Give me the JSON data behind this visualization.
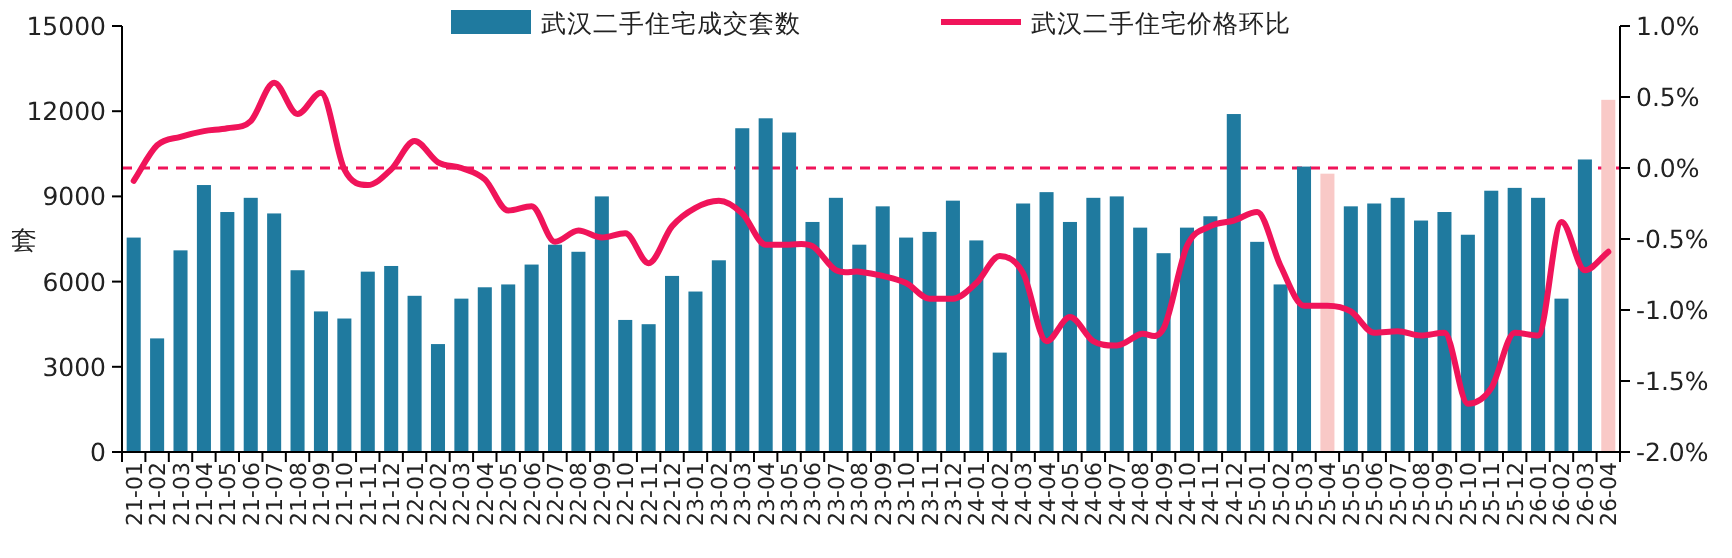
{
  "chart_data": {
    "type": "bar",
    "ylabel": "套",
    "legend": "top",
    "categories": [
      "21-01",
      "21-02",
      "21-03",
      "21-04",
      "21-05",
      "21-06",
      "21-07",
      "21-08",
      "21-09",
      "21-10",
      "21-11",
      "21-12",
      "22-01",
      "22-02",
      "22-03",
      "22-04",
      "22-05",
      "22-06",
      "22-07",
      "22-08",
      "22-09",
      "22-10",
      "22-11",
      "22-12",
      "23-01",
      "23-02",
      "23-03",
      "23-04",
      "23-05",
      "23-06",
      "23-07",
      "23-08",
      "23-09",
      "23-10",
      "23-11",
      "23-12",
      "24-01",
      "24-02",
      "24-03",
      "24-04",
      "24-05",
      "24-06",
      "24-07",
      "24-08",
      "24-09",
      "24-10",
      "24-11",
      "24-12",
      "25-01",
      "25-02",
      "25-03",
      "25-04",
      "25-05",
      "25-06",
      "25-07",
      "25-08",
      "25-09",
      "25-10",
      "25-11",
      "25-12",
      "26-01",
      "26-02",
      "26-03",
      "26-04"
    ],
    "series": [
      {
        "name": "武汉二手住宅成交套数",
        "color": "#1f7a9f",
        "colors": [
          "#1f7a9f",
          "#1f7a9f",
          "#1f7a9f",
          "#1f7a9f",
          "#1f7a9f",
          "#1f7a9f",
          "#1f7a9f",
          "#1f7a9f",
          "#1f7a9f",
          "#1f7a9f",
          "#1f7a9f",
          "#1f7a9f",
          "#1f7a9f",
          "#1f7a9f",
          "#1f7a9f",
          "#1f7a9f",
          "#1f7a9f",
          "#1f7a9f",
          "#1f7a9f",
          "#1f7a9f",
          "#1f7a9f",
          "#1f7a9f",
          "#1f7a9f",
          "#1f7a9f",
          "#1f7a9f",
          "#1f7a9f",
          "#1f7a9f",
          "#1f7a9f",
          "#1f7a9f",
          "#1f7a9f",
          "#1f7a9f",
          "#1f7a9f",
          "#1f7a9f",
          "#1f7a9f",
          "#1f7a9f",
          "#1f7a9f",
          "#1f7a9f",
          "#1f7a9f",
          "#1f7a9f",
          "#1f7a9f",
          "#1f7a9f",
          "#1f7a9f",
          "#1f7a9f",
          "#1f7a9f",
          "#1f7a9f",
          "#1f7a9f",
          "#1f7a9f",
          "#1f7a9f",
          "#1f7a9f",
          "#1f7a9f",
          "#1f7a9f",
          "#f9c9c7",
          "#1f7a9f",
          "#1f7a9f",
          "#1f7a9f",
          "#1f7a9f",
          "#1f7a9f",
          "#1f7a9f",
          "#1f7a9f",
          "#1f7a9f",
          "#1f7a9f",
          "#1f7a9f",
          "#1f7a9f",
          "#f9c9c7"
        ],
        "values": [
          7550,
          4000,
          7100,
          9400,
          8450,
          8950,
          8400,
          6400,
          4950,
          4700,
          6350,
          6550,
          5500,
          3800,
          5400,
          5800,
          5900,
          6600,
          7300,
          7050,
          9000,
          4650,
          4500,
          6200,
          5650,
          6750,
          11400,
          11750,
          11250,
          8100,
          8950,
          7300,
          8650,
          7550,
          7750,
          8850,
          7450,
          3500,
          8750,
          9150,
          8100,
          8950,
          9000,
          7900,
          7000,
          7900,
          8300,
          11900,
          7400,
          5900,
          10050,
          9800,
          8650,
          8750,
          8950,
          8150,
          8450,
          7650,
          9200,
          9300,
          8950,
          5400,
          10300,
          12400
        ]
      },
      {
        "name": "武汉二手住宅价格环比",
        "type": "line",
        "axis": "y2",
        "color": "#f0145a",
        "values": [
          -0.09,
          0.16,
          0.22,
          0.26,
          0.28,
          0.33,
          0.6,
          0.38,
          0.53,
          -0.01,
          -0.12,
          -0.01,
          0.19,
          0.04,
          0.0,
          -0.08,
          -0.3,
          -0.27,
          -0.52,
          -0.44,
          -0.49,
          -0.46,
          -0.67,
          -0.41,
          -0.28,
          -0.23,
          -0.32,
          -0.54,
          -0.54,
          -0.55,
          -0.72,
          -0.73,
          -0.76,
          -0.81,
          -0.92,
          -0.92,
          -0.81,
          -0.62,
          -0.74,
          -1.22,
          -1.05,
          -1.22,
          -1.25,
          -1.17,
          -1.13,
          -0.55,
          -0.41,
          -0.37,
          -0.31,
          -0.69,
          -0.97,
          -0.97,
          -1.01,
          -1.16,
          -1.15,
          -1.18,
          -1.16,
          -1.66,
          -1.55,
          -1.16,
          -1.18,
          -0.38,
          -0.72,
          -0.59
        ]
      }
    ],
    "ylim": [
      0,
      15000
    ],
    "yticks": [
      0,
      3000,
      6000,
      9000,
      12000,
      15000
    ],
    "y2lim": [
      -2.0,
      1.0
    ],
    "y2ticks": [
      {
        "value": -2.0,
        "label": "-2.0%"
      },
      {
        "value": -1.5,
        "label": "-1.5%"
      },
      {
        "value": -1.0,
        "label": "-1.0%"
      },
      {
        "value": -0.5,
        "label": "-0.5%"
      },
      {
        "value": 0.0,
        "label": "0.0%"
      },
      {
        "value": 0.5,
        "label": "0.5%"
      },
      {
        "value": 1.0,
        "label": "1.0%"
      }
    ],
    "ref_lines": [
      {
        "axis": "y2",
        "value": 0,
        "color": "#f0145a",
        "line_style": "dashed"
      }
    ]
  }
}
